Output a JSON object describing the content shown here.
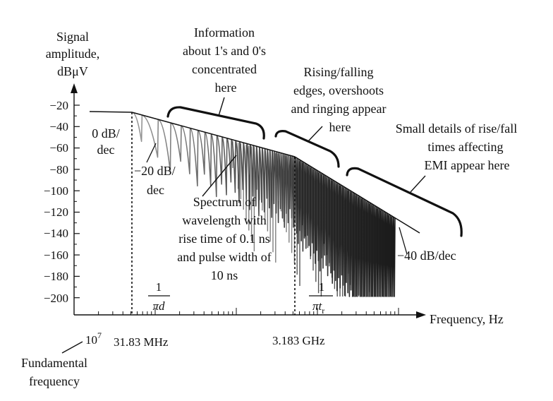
{
  "chart_data": {
    "type": "line",
    "y_axis": {
      "label_lines": [
        "Signal",
        "amplitude,",
        "dBμV"
      ],
      "ticks": [
        "−20",
        "−40",
        "−60",
        "−80",
        "−100",
        "−120",
        "−140",
        "−160",
        "−180",
        "−200"
      ]
    },
    "x_axis": {
      "label": "Frequency, Hz",
      "ticks": {
        "fundamental_base": "10",
        "fundamental_exp": "7",
        "first_corner": "31.83 MHz",
        "second_corner": "3.183 GHz"
      },
      "log_scale": true
    },
    "corner_formulas": {
      "first_numerator": "1",
      "first_denominator": "πd",
      "second_numerator": "1",
      "second_denominator_main": "πt",
      "second_denominator_sub": "r"
    },
    "envelope_slopes_db_per_decade": [
      0,
      -20,
      -40
    ],
    "annotations": {
      "fundamental": [
        "Fundamental",
        "frequency"
      ],
      "slope_0": [
        "0 dB/",
        "dec"
      ],
      "slope_20": [
        "−20 dB/",
        "dec"
      ],
      "slope_40": "−40 dB/dec",
      "info_bits": [
        "Information",
        "about 1's and 0's",
        "concentrated",
        "here"
      ],
      "edges": [
        "Rising/falling",
        "edges, overshoots",
        "and ringing appear",
        "here"
      ],
      "small_details": [
        "Small details of rise/fall",
        "times affecting",
        "EMI appear here"
      ],
      "spectrum": [
        "Spectrum of",
        "wavelength with",
        "rise time of 0.1 ns",
        "and pulse width of",
        "10 ns"
      ]
    },
    "colors": {
      "ink": "#111111",
      "spectrum_light": "#9a9a9a",
      "spectrum_dark": "#1a1a1a"
    }
  }
}
